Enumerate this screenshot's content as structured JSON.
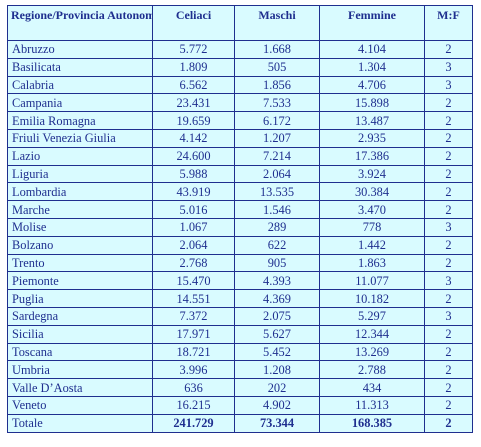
{
  "table": {
    "headers": {
      "region": "Regione/Provincia Autonoma",
      "celiaci": "Celiaci",
      "maschi": "Maschi",
      "femmine": "Femmine",
      "ratio": "M:F"
    },
    "rows": [
      {
        "region": "Abruzzo",
        "celiaci": "5.772",
        "maschi": "1.668",
        "femmine": "4.104",
        "ratio": "2"
      },
      {
        "region": "Basilicata",
        "celiaci": "1.809",
        "maschi": "505",
        "femmine": "1.304",
        "ratio": "3"
      },
      {
        "region": "Calabria",
        "celiaci": "6.562",
        "maschi": "1.856",
        "femmine": "4.706",
        "ratio": "3"
      },
      {
        "region": "Campania",
        "celiaci": "23.431",
        "maschi": "7.533",
        "femmine": "15.898",
        "ratio": "2"
      },
      {
        "region": "Emilia Romagna",
        "celiaci": "19.659",
        "maschi": "6.172",
        "femmine": "13.487",
        "ratio": "2"
      },
      {
        "region": "Friuli Venezia Giulia",
        "celiaci": "4.142",
        "maschi": "1.207",
        "femmine": "2.935",
        "ratio": "2"
      },
      {
        "region": "Lazio",
        "celiaci": "24.600",
        "maschi": "7.214",
        "femmine": "17.386",
        "ratio": "2"
      },
      {
        "region": "Liguria",
        "celiaci": "5.988",
        "maschi": "2.064",
        "femmine": "3.924",
        "ratio": "2"
      },
      {
        "region": "Lombardia",
        "celiaci": "43.919",
        "maschi": "13.535",
        "femmine": "30.384",
        "ratio": "2"
      },
      {
        "region": "Marche",
        "celiaci": "5.016",
        "maschi": "1.546",
        "femmine": "3.470",
        "ratio": "2"
      },
      {
        "region": "Molise",
        "celiaci": "1.067",
        "maschi": "289",
        "femmine": "778",
        "ratio": "3"
      },
      {
        "region": "Bolzano",
        "celiaci": "2.064",
        "maschi": "622",
        "femmine": "1.442",
        "ratio": "2"
      },
      {
        "region": "Trento",
        "celiaci": "2.768",
        "maschi": "905",
        "femmine": "1.863",
        "ratio": "2"
      },
      {
        "region": "Piemonte",
        "celiaci": "15.470",
        "maschi": "4.393",
        "femmine": "11.077",
        "ratio": "3"
      },
      {
        "region": "Puglia",
        "celiaci": "14.551",
        "maschi": "4.369",
        "femmine": "10.182",
        "ratio": "2"
      },
      {
        "region": "Sardegna",
        "celiaci": "7.372",
        "maschi": "2.075",
        "femmine": "5.297",
        "ratio": "3"
      },
      {
        "region": "Sicilia",
        "celiaci": "17.971",
        "maschi": "5.627",
        "femmine": "12.344",
        "ratio": "2"
      },
      {
        "region": "Toscana",
        "celiaci": "18.721",
        "maschi": "5.452",
        "femmine": "13.269",
        "ratio": "2"
      },
      {
        "region": "Umbria",
        "celiaci": "3.996",
        "maschi": "1.208",
        "femmine": "2.788",
        "ratio": "2"
      },
      {
        "region": "Valle D’Aosta",
        "celiaci": "636",
        "maschi": "202",
        "femmine": "434",
        "ratio": "2"
      },
      {
        "region": "Veneto",
        "celiaci": "16.215",
        "maschi": "4.902",
        "femmine": "11.313",
        "ratio": "2"
      }
    ],
    "total": {
      "region": "Totale",
      "celiaci": "241.729",
      "maschi": "73.344",
      "femmine": "168.385",
      "ratio": "2"
    }
  }
}
